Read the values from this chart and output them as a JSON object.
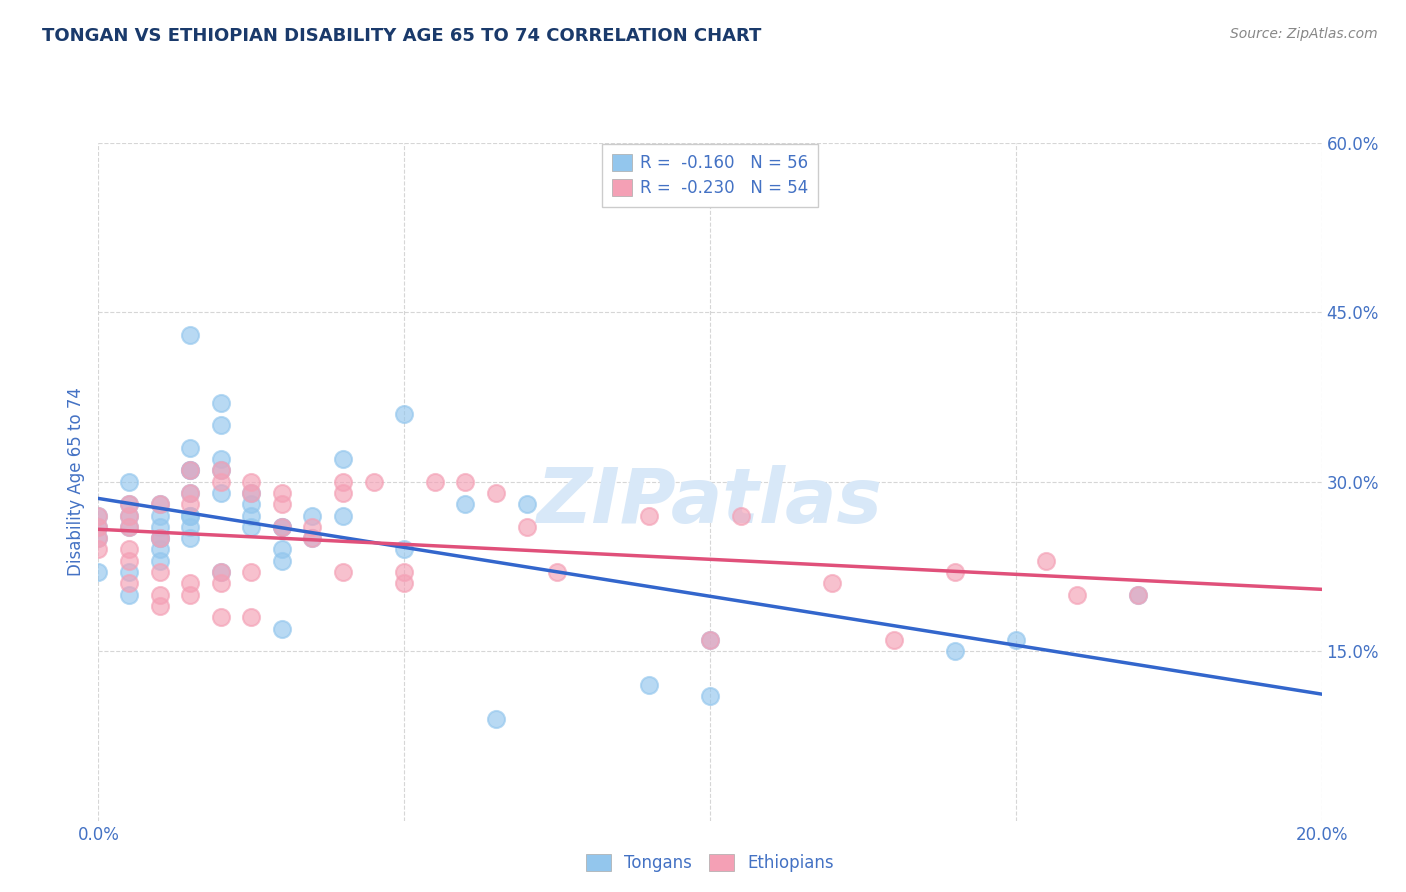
{
  "title": "TONGAN VS ETHIOPIAN DISABILITY AGE 65 TO 74 CORRELATION CHART",
  "ylabel": "Disability Age 65 to 74",
  "source_text": "Source: ZipAtlas.com",
  "watermark": "ZIPatlas",
  "xlim": [
    0.0,
    0.2
  ],
  "ylim": [
    0.0,
    0.6
  ],
  "xtick_vals": [
    0.0,
    0.05,
    0.1,
    0.15,
    0.2
  ],
  "xticklabels": [
    "0.0%",
    "",
    "",
    "",
    "20.0%"
  ],
  "ytick_vals": [
    0.15,
    0.3,
    0.45,
    0.6
  ],
  "yticklabels": [
    "15.0%",
    "30.0%",
    "45.0%",
    "60.0%"
  ],
  "legend_label1": "R =  -0.160   N = 56",
  "legend_label2": "R =  -0.230   N = 54",
  "tongan_color": "#93C6ED",
  "ethiopian_color": "#F4A0B5",
  "line_tongan_color": "#3366CC",
  "line_ethiopian_color": "#E0507A",
  "title_color": "#1A3A6B",
  "axis_label_color": "#4472C4",
  "tick_color": "#4472C4",
  "background_color": "#FFFFFF",
  "grid_color": "#CCCCCC",
  "source_color": "#888888",
  "watermark_color": "#D8E8F8",
  "tongan_x": [
    0.0,
    0.0,
    0.0,
    0.0,
    0.005,
    0.005,
    0.005,
    0.005,
    0.005,
    0.005,
    0.01,
    0.01,
    0.01,
    0.01,
    0.01,
    0.01,
    0.01,
    0.015,
    0.015,
    0.015,
    0.015,
    0.015,
    0.015,
    0.015,
    0.015,
    0.015,
    0.02,
    0.02,
    0.02,
    0.02,
    0.02,
    0.02,
    0.025,
    0.025,
    0.025,
    0.025,
    0.03,
    0.03,
    0.03,
    0.03,
    0.03,
    0.035,
    0.035,
    0.04,
    0.04,
    0.05,
    0.05,
    0.06,
    0.065,
    0.07,
    0.09,
    0.1,
    0.1,
    0.14,
    0.15,
    0.17
  ],
  "tongan_y": [
    0.27,
    0.25,
    0.22,
    0.26,
    0.3,
    0.28,
    0.27,
    0.26,
    0.22,
    0.2,
    0.28,
    0.25,
    0.25,
    0.27,
    0.23,
    0.26,
    0.24,
    0.43,
    0.33,
    0.31,
    0.31,
    0.29,
    0.27,
    0.27,
    0.26,
    0.25,
    0.37,
    0.35,
    0.32,
    0.31,
    0.29,
    0.22,
    0.29,
    0.26,
    0.28,
    0.27,
    0.24,
    0.26,
    0.26,
    0.23,
    0.17,
    0.25,
    0.27,
    0.32,
    0.27,
    0.36,
    0.24,
    0.28,
    0.09,
    0.28,
    0.12,
    0.11,
    0.16,
    0.15,
    0.16,
    0.2
  ],
  "ethiopian_x": [
    0.0,
    0.0,
    0.0,
    0.0,
    0.005,
    0.005,
    0.005,
    0.005,
    0.005,
    0.005,
    0.01,
    0.01,
    0.01,
    0.01,
    0.01,
    0.015,
    0.015,
    0.015,
    0.015,
    0.015,
    0.02,
    0.02,
    0.02,
    0.02,
    0.02,
    0.025,
    0.025,
    0.025,
    0.025,
    0.03,
    0.03,
    0.03,
    0.035,
    0.035,
    0.04,
    0.04,
    0.04,
    0.045,
    0.05,
    0.05,
    0.055,
    0.06,
    0.065,
    0.07,
    0.075,
    0.09,
    0.1,
    0.105,
    0.12,
    0.13,
    0.14,
    0.155,
    0.16,
    0.17
  ],
  "ethiopian_y": [
    0.27,
    0.26,
    0.25,
    0.24,
    0.28,
    0.27,
    0.26,
    0.24,
    0.23,
    0.21,
    0.28,
    0.25,
    0.22,
    0.2,
    0.19,
    0.31,
    0.29,
    0.28,
    0.21,
    0.2,
    0.31,
    0.3,
    0.22,
    0.21,
    0.18,
    0.3,
    0.29,
    0.22,
    0.18,
    0.29,
    0.28,
    0.26,
    0.26,
    0.25,
    0.3,
    0.29,
    0.22,
    0.3,
    0.22,
    0.21,
    0.3,
    0.3,
    0.29,
    0.26,
    0.22,
    0.27,
    0.16,
    0.27,
    0.21,
    0.16,
    0.22,
    0.23,
    0.2,
    0.2
  ]
}
